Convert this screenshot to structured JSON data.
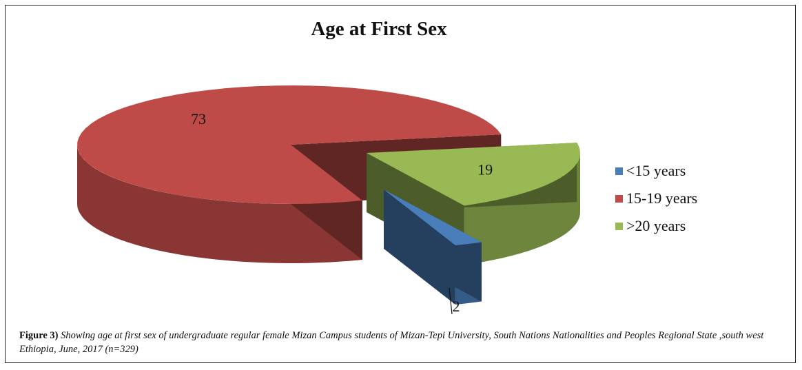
{
  "chart_data": {
    "type": "pie",
    "title": "Age at First Sex",
    "categories": [
      "<15 years",
      "15-19 years",
      ">20 years"
    ],
    "values": [
      2,
      73,
      19
    ],
    "colors": [
      "#4a7ebb",
      "#be4b48",
      "#98b954"
    ],
    "legend_position": "right",
    "style": "3d exploded"
  },
  "caption": {
    "label": "Figure 3)",
    "text": " Showing age at first sex of undergraduate regular female Mizan Campus students of Mizan-Tepi University, South Nations Nationalities and Peoples Regional State ,south west Ethiopia, June, 2017 (n=329)"
  }
}
